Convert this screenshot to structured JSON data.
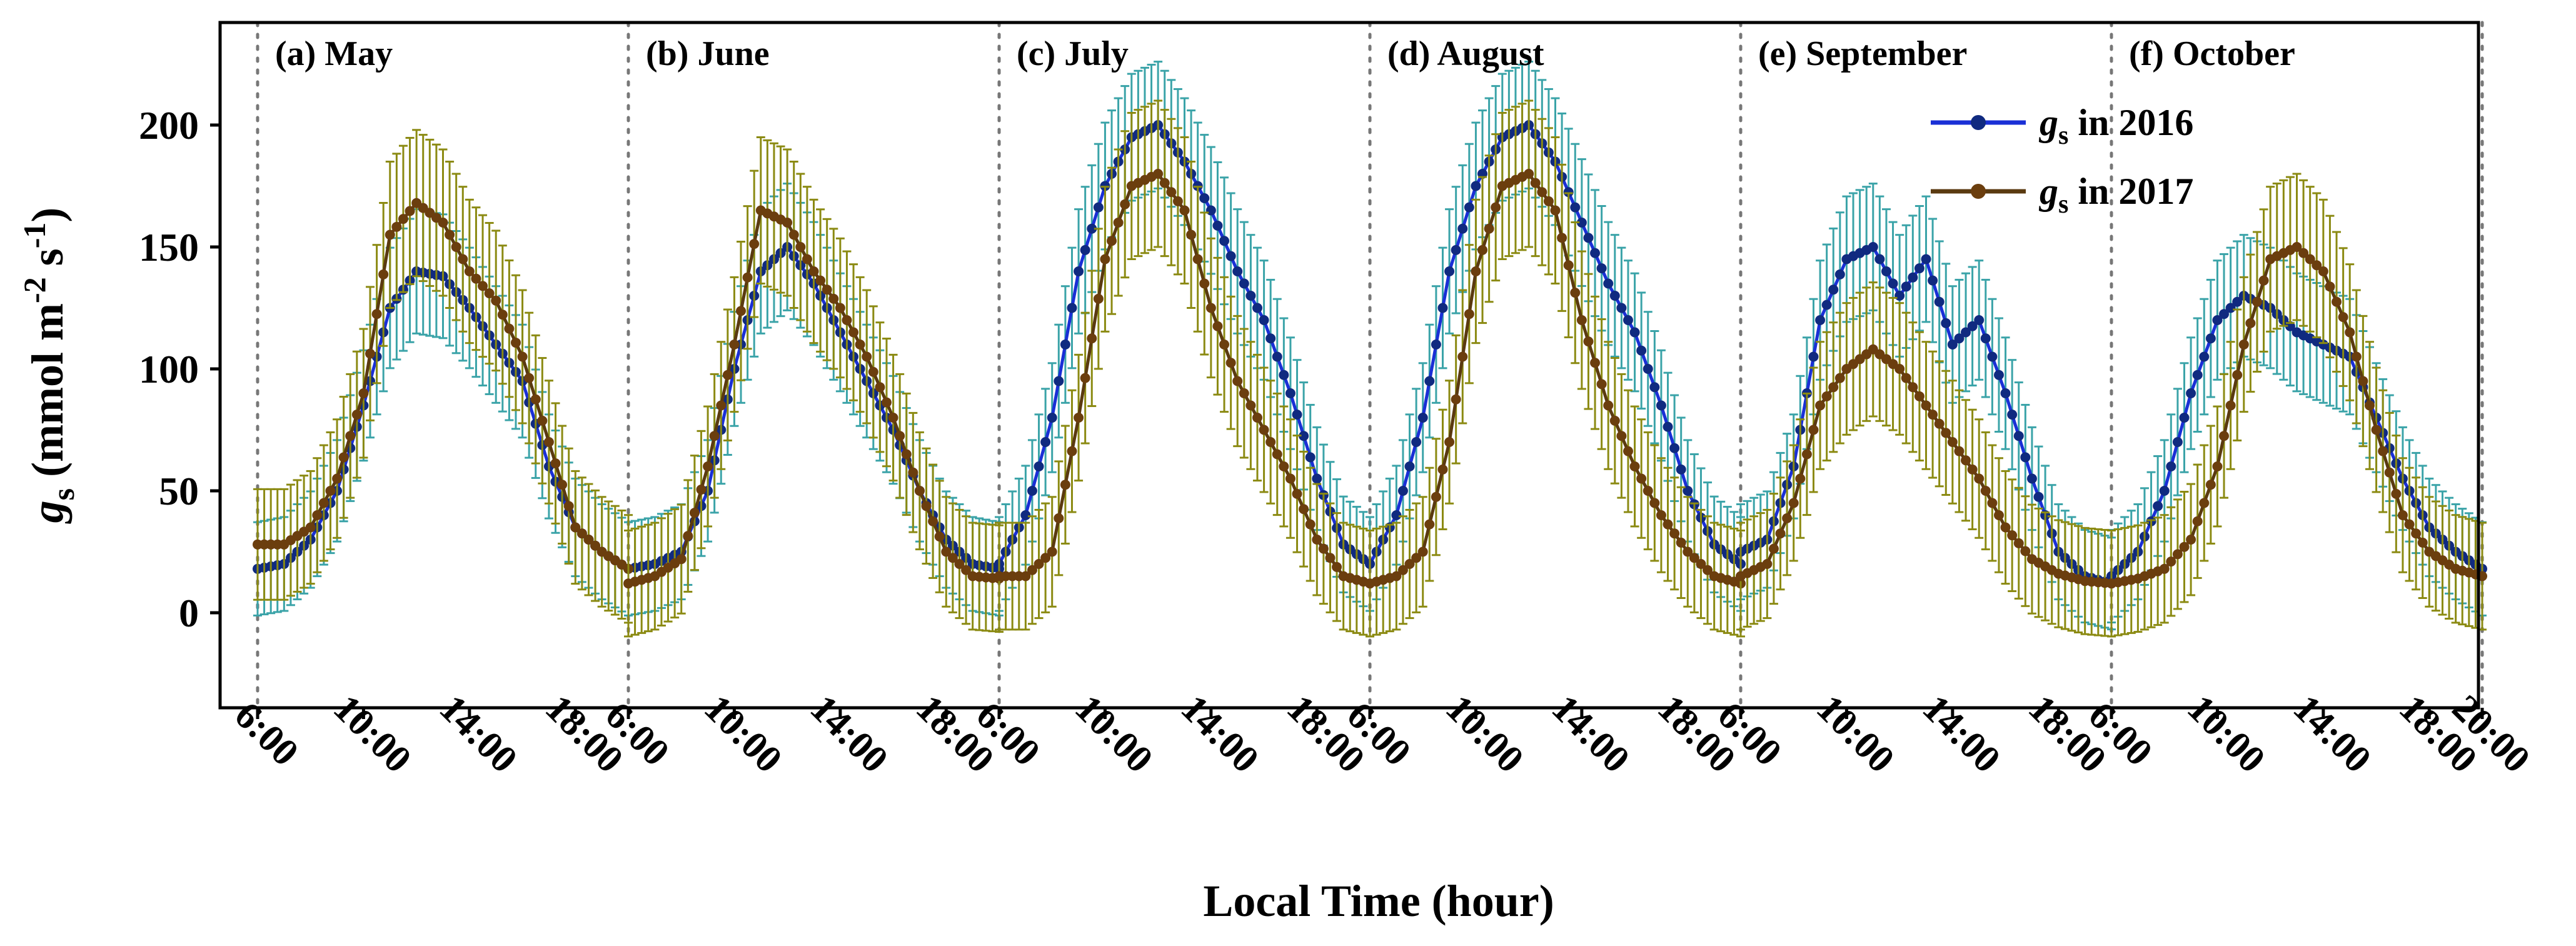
{
  "chart_data": {
    "type": "line",
    "ylabel": {
      "main": "g",
      "sub": "s",
      "rest": " (mmol m",
      "sup1": "-2",
      "mid": " s",
      "sup2": "-1",
      "end": ")"
    },
    "xlabel": "Local Time (hour)",
    "ylim": [
      -40,
      240
    ],
    "yticks": [
      0,
      50,
      100,
      150,
      200
    ],
    "panels": [
      {
        "label": "(a) May"
      },
      {
        "label": "(b) June"
      },
      {
        "label": "(c) July"
      },
      {
        "label": "(d) August"
      },
      {
        "label": "(e) September"
      },
      {
        "label": "(f) October"
      }
    ],
    "panel_hours": [
      6,
      20
    ],
    "xtick_labels": [
      "6:00",
      "10:00",
      "14:00",
      "18:00"
    ],
    "final_xtick_label": "20:00",
    "legend_position": "top-right",
    "series": [
      {
        "name": "in 2016",
        "symbol": "g",
        "symbol_sub": "s",
        "line_color": "#1a2fd6",
        "marker_color": "#102a80",
        "errorbar_color": "#3aa3a8",
        "error_amplitude": 26,
        "profiles": [
          [
            [
              6,
              18
            ],
            [
              7,
              20
            ],
            [
              8,
              30
            ],
            [
              9,
              50
            ],
            [
              10,
              85
            ],
            [
              11,
              125
            ],
            [
              12,
              140
            ],
            [
              13,
              138
            ],
            [
              14,
              125
            ],
            [
              15,
              110
            ],
            [
              16,
              95
            ],
            [
              17,
              60
            ],
            [
              18,
              35
            ],
            [
              19,
              25
            ],
            [
              20,
              18
            ]
          ],
          [
            [
              6,
              18
            ],
            [
              7,
              20
            ],
            [
              8,
              25
            ],
            [
              9,
              50
            ],
            [
              10,
              100
            ],
            [
              11,
              140
            ],
            [
              12,
              150
            ],
            [
              13,
              135
            ],
            [
              14,
              115
            ],
            [
              15,
              95
            ],
            [
              16,
              75
            ],
            [
              17,
              50
            ],
            [
              18,
              30
            ],
            [
              19,
              20
            ],
            [
              20,
              18
            ]
          ],
          [
            [
              6,
              20
            ],
            [
              7,
              40
            ],
            [
              8,
              80
            ],
            [
              9,
              140
            ],
            [
              10,
              175
            ],
            [
              11,
              195
            ],
            [
              12,
              200
            ],
            [
              13,
              185
            ],
            [
              14,
              165
            ],
            [
              15,
              140
            ],
            [
              16,
              120
            ],
            [
              17,
              90
            ],
            [
              18,
              55
            ],
            [
              19,
              28
            ],
            [
              20,
              20
            ]
          ],
          [
            [
              6,
              20
            ],
            [
              7,
              40
            ],
            [
              8,
              80
            ],
            [
              9,
              140
            ],
            [
              10,
              175
            ],
            [
              11,
              195
            ],
            [
              12,
              200
            ],
            [
              13,
              185
            ],
            [
              14,
              160
            ],
            [
              15,
              135
            ],
            [
              16,
              115
            ],
            [
              17,
              85
            ],
            [
              18,
              50
            ],
            [
              19,
              28
            ],
            [
              20,
              20
            ]
          ],
          [
            [
              6,
              25
            ],
            [
              7,
              30
            ],
            [
              8,
              60
            ],
            [
              9,
              120
            ],
            [
              10,
              145
            ],
            [
              11,
              150
            ],
            [
              12,
              130
            ],
            [
              13,
              145
            ],
            [
              14,
              110
            ],
            [
              15,
              120
            ],
            [
              16,
              90
            ],
            [
              17,
              55
            ],
            [
              18,
              25
            ],
            [
              19,
              15
            ],
            [
              20,
              12
            ]
          ],
          [
            [
              6,
              15
            ],
            [
              7,
              25
            ],
            [
              8,
              50
            ],
            [
              9,
              90
            ],
            [
              10,
              120
            ],
            [
              11,
              130
            ],
            [
              12,
              125
            ],
            [
              13,
              115
            ],
            [
              14,
              110
            ],
            [
              15,
              105
            ],
            [
              16,
              80
            ],
            [
              17,
              55
            ],
            [
              18,
              35
            ],
            [
              19,
              25
            ],
            [
              20,
              18
            ]
          ]
        ]
      },
      {
        "name": "in 2017",
        "symbol": "g",
        "symbol_sub": "s",
        "line_color": "#5a3a10",
        "marker_color": "#6b3e0e",
        "errorbar_color": "#8b8a12",
        "error_amplitude": 30,
        "profiles": [
          [
            [
              6,
              28
            ],
            [
              7,
              28
            ],
            [
              8,
              35
            ],
            [
              9,
              55
            ],
            [
              10,
              90
            ],
            [
              11,
              155
            ],
            [
              12,
              168
            ],
            [
              13,
              160
            ],
            [
              14,
              140
            ],
            [
              15,
              128
            ],
            [
              16,
              105
            ],
            [
              17,
              70
            ],
            [
              18,
              35
            ],
            [
              19,
              25
            ],
            [
              20,
              18
            ]
          ],
          [
            [
              6,
              12
            ],
            [
              7,
              15
            ],
            [
              8,
              22
            ],
            [
              9,
              60
            ],
            [
              10,
              110
            ],
            [
              11,
              165
            ],
            [
              12,
              160
            ],
            [
              13,
              140
            ],
            [
              14,
              125
            ],
            [
              15,
              105
            ],
            [
              16,
              80
            ],
            [
              17,
              50
            ],
            [
              18,
              25
            ],
            [
              19,
              15
            ],
            [
              20,
              14
            ]
          ],
          [
            [
              6,
              15
            ],
            [
              7,
              15
            ],
            [
              8,
              25
            ],
            [
              9,
              80
            ],
            [
              10,
              145
            ],
            [
              11,
              175
            ],
            [
              12,
              180
            ],
            [
              13,
              165
            ],
            [
              14,
              125
            ],
            [
              15,
              95
            ],
            [
              16,
              75
            ],
            [
              17,
              55
            ],
            [
              18,
              30
            ],
            [
              19,
              15
            ],
            [
              20,
              12
            ]
          ],
          [
            [
              6,
              12
            ],
            [
              7,
              15
            ],
            [
              8,
              25
            ],
            [
              9,
              70
            ],
            [
              10,
              140
            ],
            [
              11,
              175
            ],
            [
              12,
              180
            ],
            [
              13,
              165
            ],
            [
              14,
              120
            ],
            [
              15,
              85
            ],
            [
              16,
              60
            ],
            [
              17,
              40
            ],
            [
              18,
              25
            ],
            [
              19,
              15
            ],
            [
              20,
              12
            ]
          ],
          [
            [
              6,
              15
            ],
            [
              7,
              20
            ],
            [
              8,
              45
            ],
            [
              9,
              85
            ],
            [
              10,
              100
            ],
            [
              11,
              108
            ],
            [
              12,
              100
            ],
            [
              13,
              85
            ],
            [
              14,
              70
            ],
            [
              15,
              55
            ],
            [
              16,
              35
            ],
            [
              17,
              22
            ],
            [
              18,
              16
            ],
            [
              19,
              13
            ],
            [
              20,
              12
            ]
          ],
          [
            [
              6,
              12
            ],
            [
              7,
              14
            ],
            [
              8,
              18
            ],
            [
              9,
              30
            ],
            [
              10,
              60
            ],
            [
              11,
              110
            ],
            [
              12,
              145
            ],
            [
              13,
              150
            ],
            [
              14,
              140
            ],
            [
              15,
              115
            ],
            [
              16,
              75
            ],
            [
              17,
              40
            ],
            [
              18,
              25
            ],
            [
              19,
              18
            ],
            [
              20,
              15
            ]
          ]
        ]
      }
    ]
  }
}
